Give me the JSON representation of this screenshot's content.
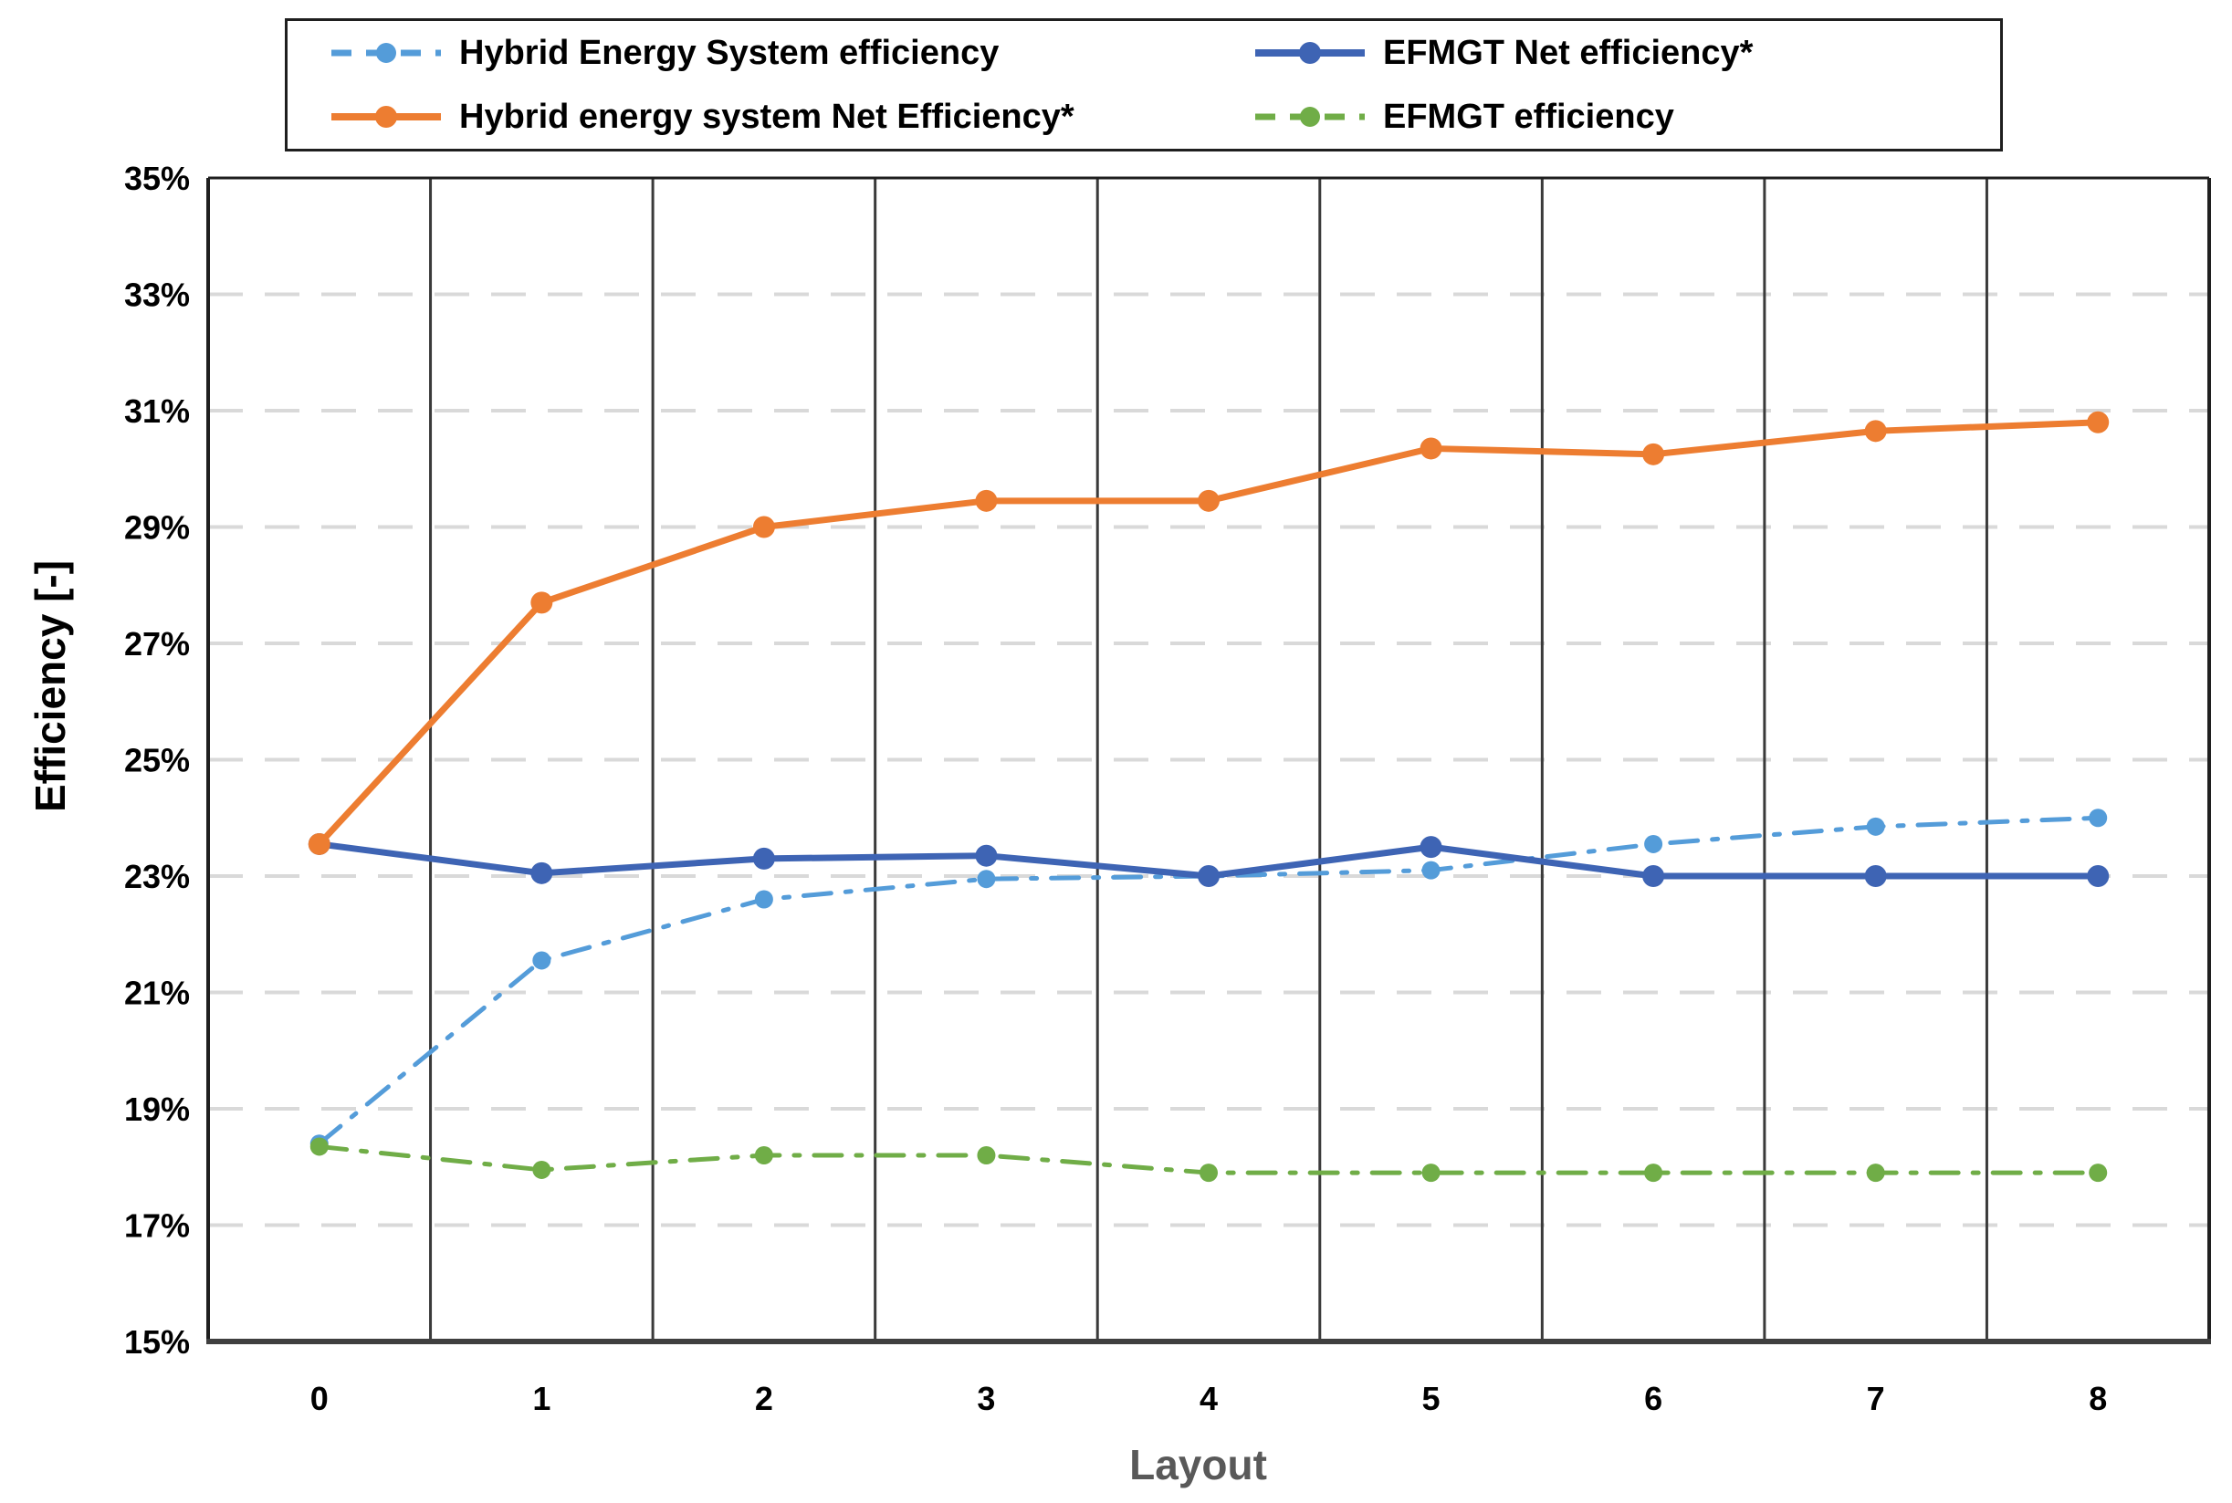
{
  "chart_data": {
    "type": "line",
    "title": "",
    "xlabel": "Layout",
    "ylabel": "Efficiency [-]",
    "categories": [
      "0",
      "1",
      "2",
      "3",
      "4",
      "5",
      "6",
      "7",
      "8"
    ],
    "y_axis": {
      "min": 15,
      "max": 35,
      "step": 2,
      "tick_format": "percent"
    },
    "grid": {
      "horizontal": "dashed-light",
      "vertical": "solid-dark-category-boundaries"
    },
    "legend_position": "top",
    "series": [
      {
        "name": "Hybrid Energy System efficiency",
        "color": "#549CD9",
        "line_style": "dash-dot",
        "line_width": 5,
        "marker": "circle",
        "marker_radius": 10,
        "values": [
          18.4,
          21.55,
          22.6,
          22.95,
          23.0,
          23.1,
          23.55,
          23.85,
          24.0
        ]
      },
      {
        "name": "EFMGT Net efficiency*",
        "color": "#3E64B4",
        "line_style": "solid",
        "line_width": 7,
        "marker": "circle",
        "marker_radius": 12,
        "values": [
          23.55,
          23.05,
          23.3,
          23.35,
          23.0,
          23.5,
          23.0,
          23.0,
          23.0
        ]
      },
      {
        "name": "Hybrid energy system Net Efficiency*",
        "color": "#ED7D31",
        "line_style": "solid",
        "line_width": 7,
        "marker": "circle",
        "marker_radius": 12,
        "values": [
          23.55,
          27.7,
          29.0,
          29.45,
          29.45,
          30.35,
          30.25,
          30.65,
          30.8
        ]
      },
      {
        "name": "EFMGT efficiency",
        "color": "#70AD47",
        "line_style": "dash-dot",
        "line_width": 5,
        "marker": "circle",
        "marker_radius": 10,
        "values": [
          18.35,
          17.95,
          18.2,
          18.2,
          17.9,
          17.9,
          17.9,
          17.9,
          17.9
        ]
      }
    ],
    "colors": {
      "h_gridline": "#D9D9D9",
      "v_gridline": "#3A3A3A",
      "plot_border": "#1f1f1f",
      "bottom_axis": "#3F3F3F",
      "tick_text": "#000000",
      "x_title_text": "#595959"
    }
  }
}
